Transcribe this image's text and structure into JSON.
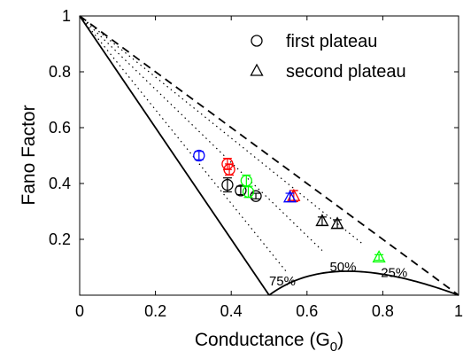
{
  "chart_data": {
    "type": "scatter",
    "title": "",
    "xlabel": "Conductance (G",
    "xlabel_sub": "0",
    "xlabel_end": ")",
    "ylabel": "Fano Factor",
    "xlim": [
      0,
      1
    ],
    "ylim": [
      0,
      1
    ],
    "xticks": [
      "0",
      "0.2",
      "0.4",
      "0.6",
      "0.8",
      "1"
    ],
    "yticks": [
      "0.2",
      "0.4",
      "0.6",
      "0.8",
      "1"
    ],
    "xtick_values": [
      0,
      0.2,
      0.4,
      0.6,
      0.8,
      1
    ],
    "ytick_values": [
      0.2,
      0.4,
      0.6,
      0.8,
      1
    ],
    "grid": false,
    "legend_position": "top-right",
    "legend": [
      {
        "label": "first plateau",
        "marker": "circle"
      },
      {
        "label": "second plateau",
        "marker": "triangle"
      }
    ],
    "annotations": [
      {
        "text": "75%",
        "x": 0.535,
        "y": 0.035
      },
      {
        "text": "50%",
        "x": 0.695,
        "y": 0.085
      },
      {
        "text": "25%",
        "x": 0.83,
        "y": 0.065
      }
    ],
    "series": [
      {
        "marker": "circle",
        "points": [
          {
            "x": 0.315,
            "y": 0.5,
            "err": 0.015,
            "color": "#0000ff"
          },
          {
            "x": 0.39,
            "y": 0.47,
            "err": 0.02,
            "color": "#ff0000"
          },
          {
            "x": 0.395,
            "y": 0.45,
            "err": 0.02,
            "color": "#ff0000"
          },
          {
            "x": 0.39,
            "y": 0.395,
            "err": 0.025,
            "color": "#000000"
          },
          {
            "x": 0.425,
            "y": 0.375,
            "err": 0.015,
            "color": "#000000"
          },
          {
            "x": 0.465,
            "y": 0.355,
            "err": 0.01,
            "color": "#000000"
          },
          {
            "x": 0.44,
            "y": 0.41,
            "err": 0.02,
            "color": "#00ff00"
          },
          {
            "x": 0.445,
            "y": 0.37,
            "err": 0.02,
            "color": "#00ff00"
          }
        ]
      },
      {
        "marker": "triangle",
        "points": [
          {
            "x": 0.565,
            "y": 0.355,
            "err": 0.02,
            "color": "#ff0000"
          },
          {
            "x": 0.555,
            "y": 0.35,
            "err": 0.015,
            "color": "#0000ff"
          },
          {
            "x": 0.64,
            "y": 0.265,
            "err": 0.015,
            "color": "#000000"
          },
          {
            "x": 0.68,
            "y": 0.255,
            "err": 0.015,
            "color": "#000000"
          },
          {
            "x": 0.79,
            "y": 0.135,
            "err": 0.01,
            "color": "#00ff00"
          }
        ]
      }
    ],
    "curves": [
      {
        "kind": "solid",
        "description": "lower bound F=1-G for G<0.5"
      },
      {
        "kind": "solid",
        "description": "parabola F=(G-0.5)(1-G)/(G)"
      },
      {
        "kind": "dashed",
        "description": "upper bound F=1-G"
      },
      {
        "kind": "dotted",
        "count": 3
      }
    ]
  }
}
